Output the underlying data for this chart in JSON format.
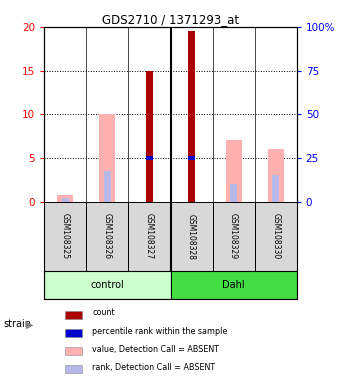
{
  "title": "GDS2710 / 1371293_at",
  "samples": [
    "GSM108325",
    "GSM108326",
    "GSM108327",
    "GSM108328",
    "GSM108329",
    "GSM108330"
  ],
  "groups": [
    "control",
    "control",
    "control",
    "Dahl",
    "Dahl",
    "Dahl"
  ],
  "count_values": [
    0,
    0,
    15,
    19.5,
    0,
    0
  ],
  "rank_values": [
    0,
    0,
    5,
    5,
    0,
    0
  ],
  "absent_value_values": [
    0.8,
    10,
    0,
    0,
    7,
    6
  ],
  "absent_rank_values": [
    0.4,
    3.5,
    0,
    0,
    2,
    3
  ],
  "count_color": "#aa0000",
  "rank_color": "#0000cc",
  "absent_value_color": "#ffb0b0",
  "absent_rank_color": "#b8b8e8",
  "ylim": [
    0,
    20
  ],
  "yticks_left": [
    0,
    5,
    10,
    15,
    20
  ],
  "yticks_right_labels": [
    "0",
    "25",
    "50",
    "75",
    "100%"
  ],
  "bar_width": 0.4,
  "group_colors": [
    "#ccffcc",
    "#44dd44"
  ],
  "group_labels": [
    "control",
    "Dahl"
  ],
  "sample_box_color": "#d8d8d8",
  "legend_items": [
    {
      "color": "#aa0000",
      "label": "count"
    },
    {
      "color": "#0000cc",
      "label": "percentile rank within the sample"
    },
    {
      "color": "#ffb0b0",
      "label": "value, Detection Call = ABSENT"
    },
    {
      "color": "#b8b8e8",
      "label": "rank, Detection Call = ABSENT"
    }
  ]
}
